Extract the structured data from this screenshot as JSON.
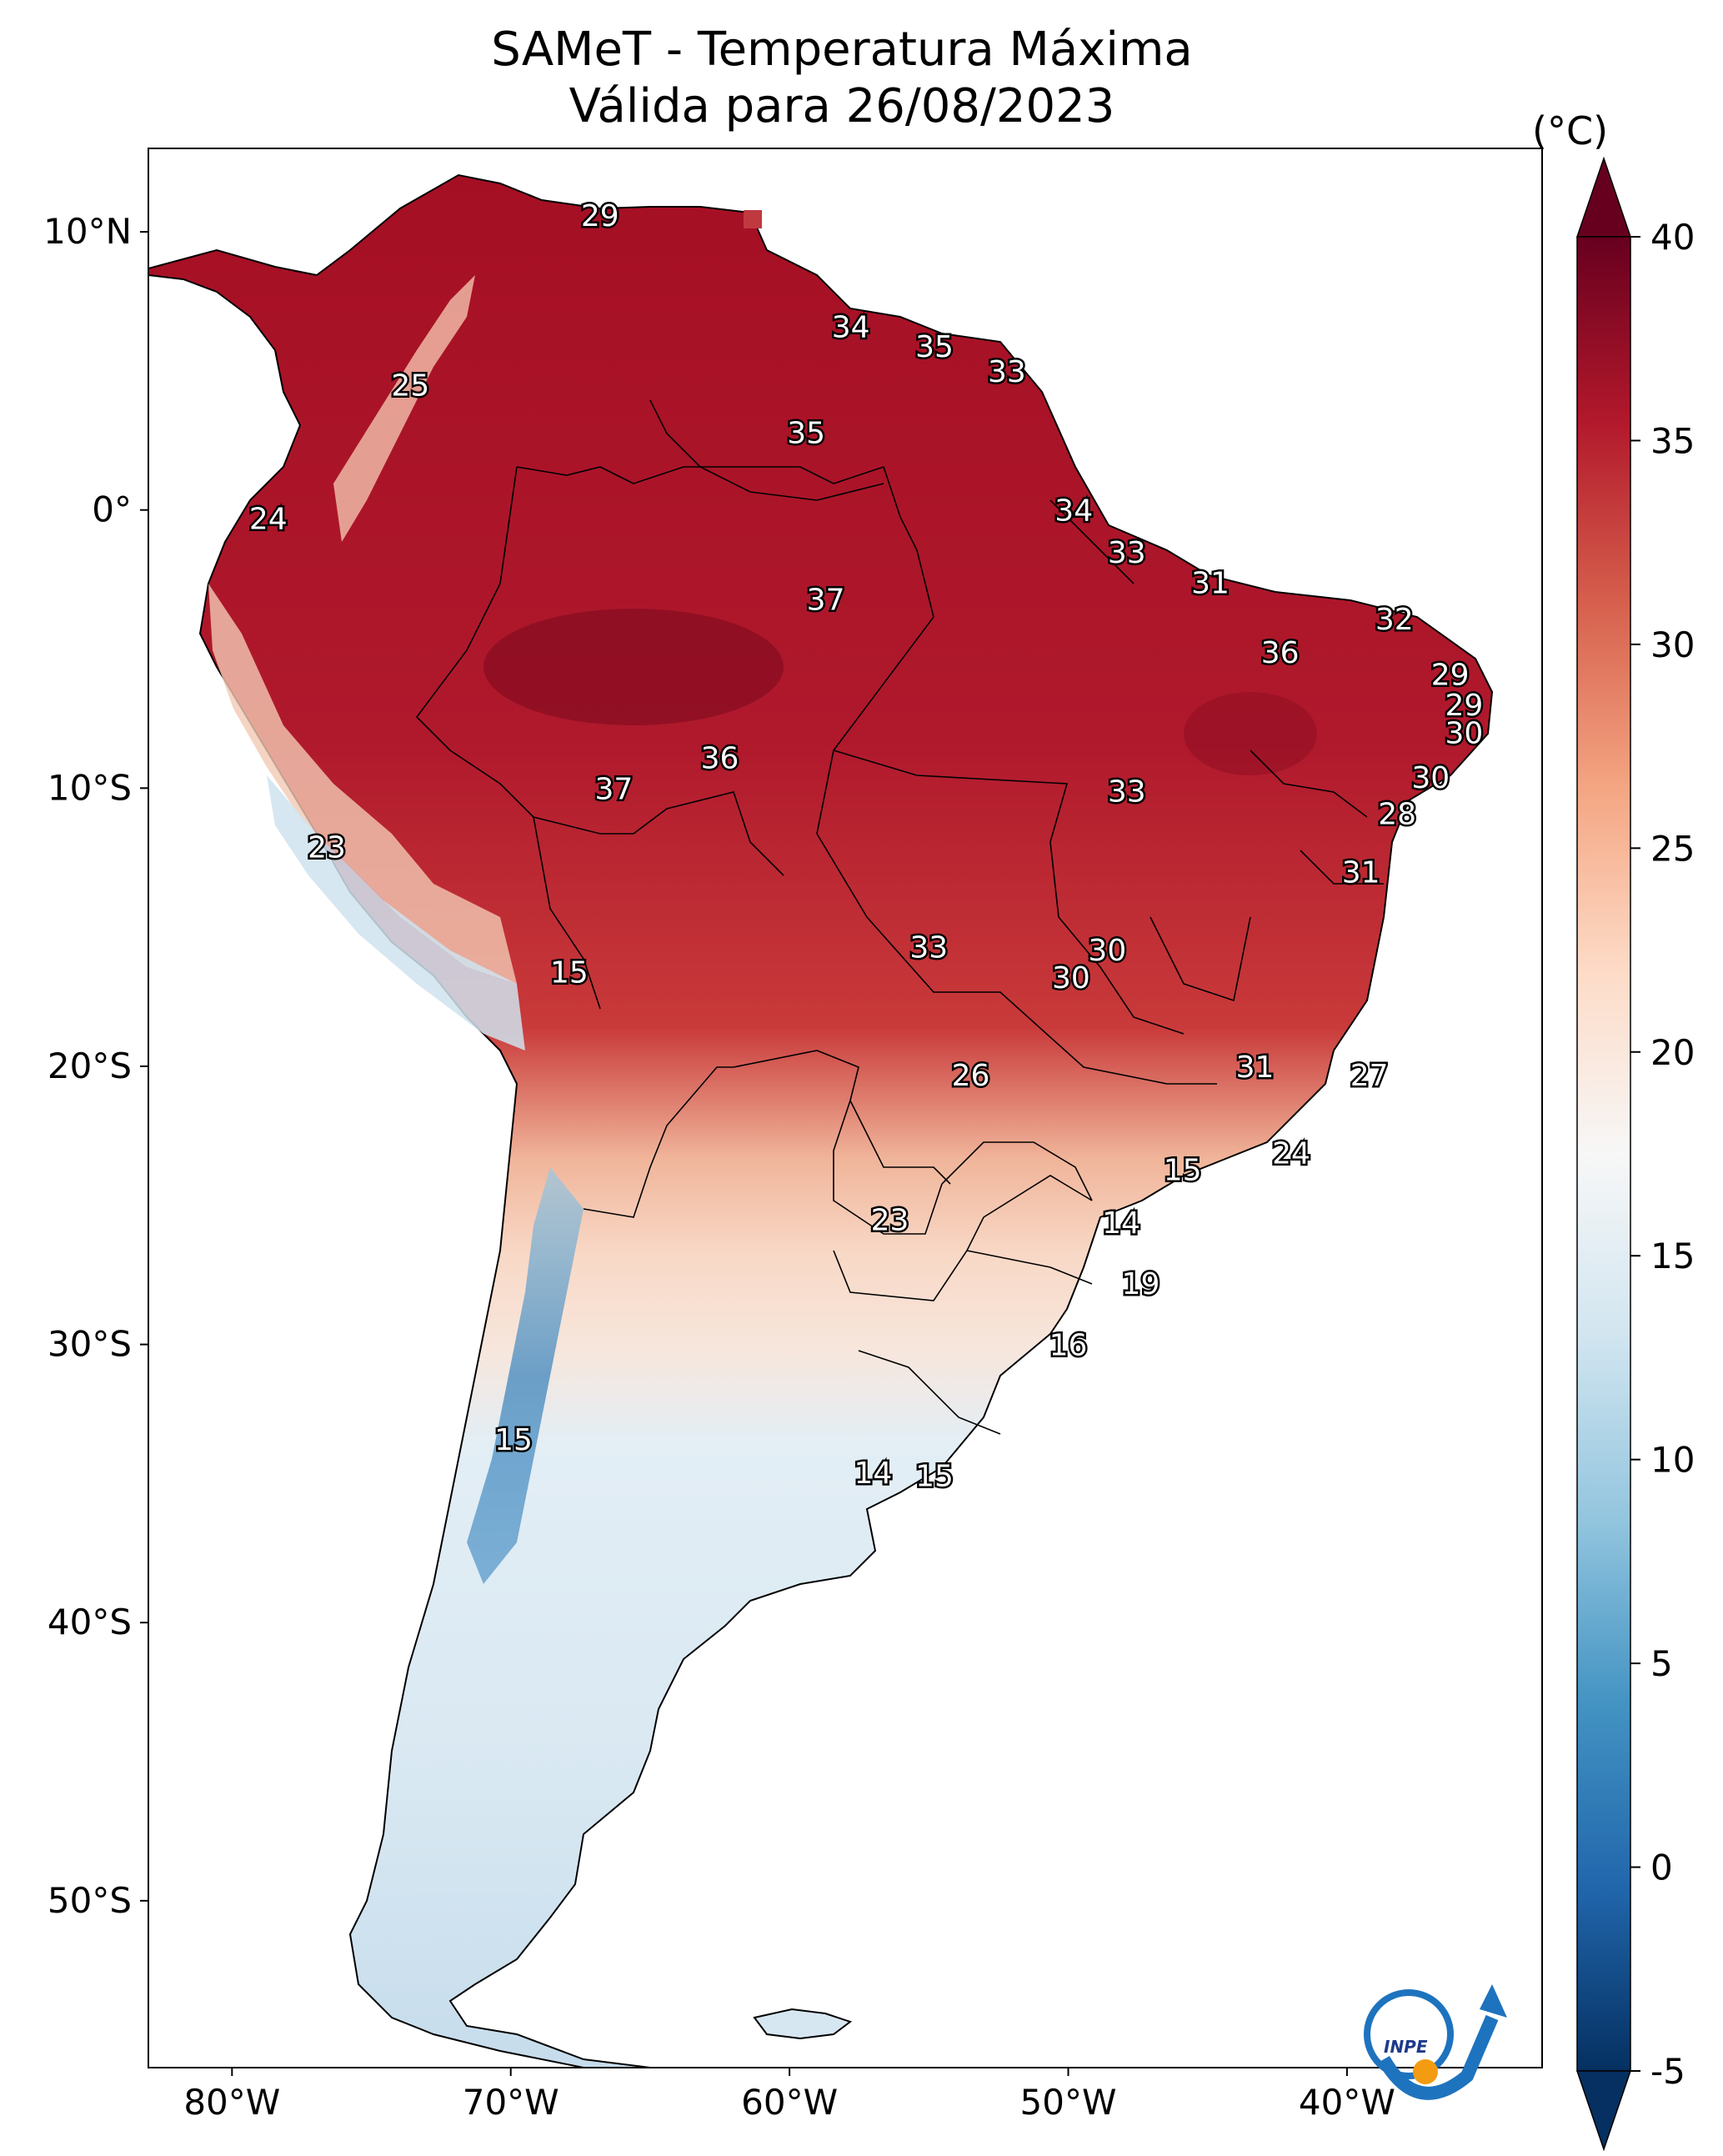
{
  "title": {
    "line1": "SAMeT - Temperatura Máxima",
    "line2": "Válida para 26/08/2023"
  },
  "map": {
    "lon_ticks": [
      "80°W",
      "70°W",
      "60°W",
      "50°W",
      "40°W"
    ],
    "lat_ticks": [
      "10°N",
      "0°",
      "10°S",
      "20°S",
      "30°S",
      "40°S",
      "50°S"
    ],
    "extent": {
      "lon": [
        -83,
        -33
      ],
      "lat": [
        -56,
        13
      ]
    },
    "labels": [
      {
        "v": "29",
        "lon": -66.8,
        "lat": 10.6
      },
      {
        "v": "34",
        "lon": -57.8,
        "lat": 6.6
      },
      {
        "v": "35",
        "lon": -54.8,
        "lat": 5.9
      },
      {
        "v": "33",
        "lon": -52.2,
        "lat": 5.0
      },
      {
        "v": "25",
        "lon": -73.6,
        "lat": 4.5
      },
      {
        "v": "35",
        "lon": -59.4,
        "lat": 2.8
      },
      {
        "v": "34",
        "lon": -49.8,
        "lat": -0.0
      },
      {
        "v": "24",
        "lon": -78.7,
        "lat": -0.3
      },
      {
        "v": "33",
        "lon": -47.9,
        "lat": -1.5
      },
      {
        "v": "31",
        "lon": -44.9,
        "lat": -2.6
      },
      {
        "v": "37",
        "lon": -58.7,
        "lat": -3.2
      },
      {
        "v": "32",
        "lon": -38.3,
        "lat": -3.9
      },
      {
        "v": "36",
        "lon": -42.4,
        "lat": -5.1
      },
      {
        "v": "29",
        "lon": -36.3,
        "lat": -5.9
      },
      {
        "v": "29",
        "lon": -35.8,
        "lat": -7.0
      },
      {
        "v": "30",
        "lon": -35.8,
        "lat": -8.0
      },
      {
        "v": "36",
        "lon": -62.5,
        "lat": -8.9
      },
      {
        "v": "30",
        "lon": -37.0,
        "lat": -9.6
      },
      {
        "v": "37",
        "lon": -66.3,
        "lat": -10.0
      },
      {
        "v": "33",
        "lon": -47.9,
        "lat": -10.1
      },
      {
        "v": "28",
        "lon": -38.2,
        "lat": -10.9
      },
      {
        "v": "23",
        "lon": -76.6,
        "lat": -12.1
      },
      {
        "v": "31",
        "lon": -39.5,
        "lat": -13.0
      },
      {
        "v": "33",
        "lon": -55.0,
        "lat": -15.7
      },
      {
        "v": "30",
        "lon": -48.6,
        "lat": -15.8
      },
      {
        "v": "15",
        "lon": -67.9,
        "lat": -16.6
      },
      {
        "v": "30",
        "lon": -49.9,
        "lat": -16.8
      },
      {
        "v": "31",
        "lon": -43.3,
        "lat": -20.0
      },
      {
        "v": "26",
        "lon": -53.5,
        "lat": -20.3
      },
      {
        "v": "27",
        "lon": -39.2,
        "lat": -20.3
      },
      {
        "v": "24",
        "lon": -42.0,
        "lat": -23.1
      },
      {
        "v": "15",
        "lon": -45.9,
        "lat": -23.7
      },
      {
        "v": "14",
        "lon": -48.1,
        "lat": -25.6
      },
      {
        "v": "23",
        "lon": -56.4,
        "lat": -25.5
      },
      {
        "v": "19",
        "lon": -47.4,
        "lat": -27.8
      },
      {
        "v": "16",
        "lon": -50.0,
        "lat": -30.0
      },
      {
        "v": "15",
        "lon": -69.9,
        "lat": -33.4
      },
      {
        "v": "14",
        "lon": -57.0,
        "lat": -34.6
      },
      {
        "v": "15",
        "lon": -54.8,
        "lat": -34.7
      }
    ]
  },
  "colorbar": {
    "unit": "(°C)",
    "ticks": [
      "40",
      "35",
      "30",
      "25",
      "20",
      "15",
      "10",
      "5",
      "0",
      "-5"
    ],
    "range": [
      -5,
      40
    ],
    "colormap": [
      "#053061",
      "#2166ac",
      "#4393c3",
      "#92c5de",
      "#d1e5f0",
      "#f7f7f7",
      "#fddbc7",
      "#f4a582",
      "#d6604d",
      "#b2182b",
      "#67001f"
    ]
  },
  "logo": {
    "text": "INPE",
    "colors": [
      "#1e73be",
      "#f39c12"
    ]
  }
}
